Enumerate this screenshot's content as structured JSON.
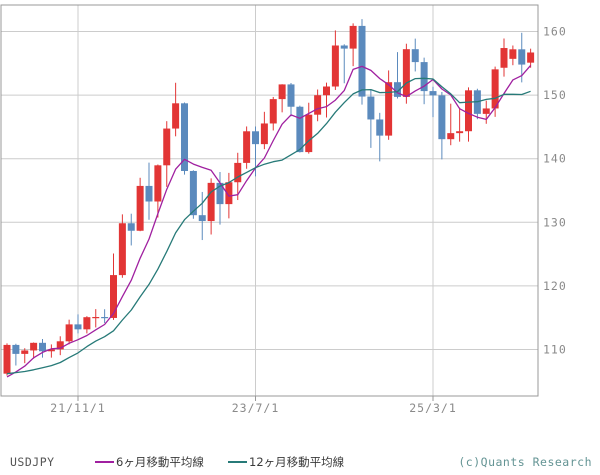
{
  "chart_data": {
    "type": "candlestick",
    "symbol": "USDJPY",
    "watermark": "(c)Quants Research",
    "legend_note": "monthly USDJPY candles with 6-month and 12-month moving average lines",
    "y_axis": {
      "ticks": [
        160,
        150,
        140,
        130,
        120,
        110
      ],
      "visible_range": [
        102.8,
        164.2
      ]
    },
    "x_axis": {
      "ticks": [
        {
          "label": "21/11/1",
          "index": 8
        },
        {
          "label": "23/7/1",
          "index": 28
        },
        {
          "label": "25/3/1",
          "index": 48
        }
      ]
    },
    "candles": [
      {
        "t": "21/3",
        "o": 106.2,
        "h": 110.97,
        "l": 105.9,
        "c": 110.72
      },
      {
        "t": "21/4",
        "o": 110.72,
        "h": 110.9,
        "l": 107.48,
        "c": 109.31
      },
      {
        "t": "21/5",
        "o": 109.31,
        "h": 110.2,
        "l": 107.85,
        "c": 109.85
      },
      {
        "t": "21/6",
        "o": 109.85,
        "h": 111.11,
        "l": 108.56,
        "c": 111.05
      },
      {
        "t": "21/7",
        "o": 111.05,
        "h": 111.66,
        "l": 108.72,
        "c": 109.72
      },
      {
        "t": "21/8",
        "o": 109.72,
        "h": 110.8,
        "l": 108.72,
        "c": 110.02
      },
      {
        "t": "21/9",
        "o": 110.02,
        "h": 112.08,
        "l": 109.11,
        "c": 111.29
      },
      {
        "t": "21/10",
        "o": 111.29,
        "h": 114.69,
        "l": 110.82,
        "c": 113.95
      },
      {
        "t": "21/11",
        "o": 113.95,
        "h": 115.52,
        "l": 112.53,
        "c": 113.17
      },
      {
        "t": "21/12",
        "o": 113.17,
        "h": 115.24,
        "l": 112.53,
        "c": 115.08
      },
      {
        "t": "22/1",
        "o": 115.08,
        "h": 116.35,
        "l": 113.47,
        "c": 115.11
      },
      {
        "t": "22/2",
        "o": 115.11,
        "h": 116.33,
        "l": 114.16,
        "c": 114.96
      },
      {
        "t": "22/3",
        "o": 114.96,
        "h": 125.1,
        "l": 114.65,
        "c": 121.7
      },
      {
        "t": "22/4",
        "o": 121.7,
        "h": 131.25,
        "l": 121.28,
        "c": 129.85
      },
      {
        "t": "22/5",
        "o": 129.85,
        "h": 131.35,
        "l": 126.36,
        "c": 128.67
      },
      {
        "t": "22/6",
        "o": 128.67,
        "h": 137.0,
        "l": 128.6,
        "c": 135.72
      },
      {
        "t": "22/7",
        "o": 135.72,
        "h": 139.38,
        "l": 130.41,
        "c": 133.27
      },
      {
        "t": "22/8",
        "o": 133.27,
        "h": 139.09,
        "l": 130.75,
        "c": 138.96
      },
      {
        "t": "22/9",
        "o": 138.96,
        "h": 145.9,
        "l": 135.57,
        "c": 144.74
      },
      {
        "t": "22/10",
        "o": 144.74,
        "h": 151.94,
        "l": 143.52,
        "c": 148.71
      },
      {
        "t": "22/11",
        "o": 148.71,
        "h": 148.84,
        "l": 137.5,
        "c": 138.07
      },
      {
        "t": "22/12",
        "o": 138.07,
        "h": 138.18,
        "l": 130.56,
        "c": 131.12
      },
      {
        "t": "23/1",
        "o": 131.12,
        "h": 134.77,
        "l": 127.21,
        "c": 130.2
      },
      {
        "t": "23/2",
        "o": 130.2,
        "h": 136.91,
        "l": 128.08,
        "c": 136.2
      },
      {
        "t": "23/3",
        "o": 136.2,
        "h": 137.91,
        "l": 129.63,
        "c": 132.86
      },
      {
        "t": "23/4",
        "o": 132.86,
        "h": 137.77,
        "l": 130.62,
        "c": 136.3
      },
      {
        "t": "23/5",
        "o": 136.3,
        "h": 140.93,
        "l": 133.5,
        "c": 139.34
      },
      {
        "t": "23/6",
        "o": 139.34,
        "h": 145.07,
        "l": 138.42,
        "c": 144.31
      },
      {
        "t": "23/7",
        "o": 144.31,
        "h": 145.07,
        "l": 137.23,
        "c": 142.29
      },
      {
        "t": "23/8",
        "o": 142.29,
        "h": 147.37,
        "l": 141.5,
        "c": 145.54
      },
      {
        "t": "23/9",
        "o": 145.54,
        "h": 149.71,
        "l": 144.44,
        "c": 149.37
      },
      {
        "t": "23/10",
        "o": 149.37,
        "h": 151.71,
        "l": 147.29,
        "c": 151.68
      },
      {
        "t": "23/11",
        "o": 151.68,
        "h": 151.9,
        "l": 146.67,
        "c": 148.17
      },
      {
        "t": "23/12",
        "o": 148.17,
        "h": 148.34,
        "l": 140.97,
        "c": 141.04
      },
      {
        "t": "24/1",
        "o": 141.04,
        "h": 148.8,
        "l": 140.8,
        "c": 146.92
      },
      {
        "t": "24/2",
        "o": 146.92,
        "h": 150.88,
        "l": 145.89,
        "c": 149.98
      },
      {
        "t": "24/3",
        "o": 149.98,
        "h": 151.97,
        "l": 146.48,
        "c": 151.35
      },
      {
        "t": "24/4",
        "o": 151.35,
        "h": 160.17,
        "l": 150.81,
        "c": 157.8
      },
      {
        "t": "24/5",
        "o": 157.8,
        "h": 157.99,
        "l": 151.86,
        "c": 157.31
      },
      {
        "t": "24/6",
        "o": 157.31,
        "h": 161.28,
        "l": 154.55,
        "c": 160.88
      },
      {
        "t": "24/7",
        "o": 160.88,
        "h": 161.95,
        "l": 148.51,
        "c": 149.77
      },
      {
        "t": "24/8",
        "o": 149.77,
        "h": 150.89,
        "l": 141.7,
        "c": 146.17
      },
      {
        "t": "24/9",
        "o": 146.17,
        "h": 147.21,
        "l": 139.58,
        "c": 143.63
      },
      {
        "t": "24/10",
        "o": 143.63,
        "h": 153.88,
        "l": 142.97,
        "c": 152.03
      },
      {
        "t": "24/11",
        "o": 152.03,
        "h": 156.75,
        "l": 149.47,
        "c": 149.72
      },
      {
        "t": "24/12",
        "o": 149.72,
        "h": 158.08,
        "l": 148.65,
        "c": 157.22
      },
      {
        "t": "25/1",
        "o": 157.22,
        "h": 158.88,
        "l": 153.72,
        "c": 155.19
      },
      {
        "t": "25/2",
        "o": 155.19,
        "h": 155.89,
        "l": 148.57,
        "c": 150.63
      },
      {
        "t": "25/3",
        "o": 150.63,
        "h": 151.31,
        "l": 146.54,
        "c": 149.96
      },
      {
        "t": "25/4",
        "o": 149.96,
        "h": 150.49,
        "l": 139.89,
        "c": 143.07
      },
      {
        "t": "25/5",
        "o": 143.07,
        "h": 148.65,
        "l": 142.12,
        "c": 144.02
      },
      {
        "t": "25/6",
        "o": 144.02,
        "h": 148.03,
        "l": 142.68,
        "c": 144.32
      },
      {
        "t": "25/7",
        "o": 144.32,
        "h": 151.21,
        "l": 142.69,
        "c": 150.75
      },
      {
        "t": "25/8",
        "o": 150.75,
        "h": 151.0,
        "l": 146.21,
        "c": 147.05
      },
      {
        "t": "25/9",
        "o": 147.05,
        "h": 149.13,
        "l": 145.49,
        "c": 147.9
      },
      {
        "t": "25/10",
        "o": 147.9,
        "h": 154.48,
        "l": 146.58,
        "c": 154.05
      },
      {
        "t": "25/11",
        "o": 154.3,
        "h": 158.9,
        "l": 152.9,
        "c": 157.4
      },
      {
        "t": "25/12",
        "o": 155.7,
        "h": 157.8,
        "l": 154.7,
        "c": 157.2
      },
      {
        "t": "26/1",
        "o": 157.2,
        "h": 159.8,
        "l": 152.0,
        "c": 154.8
      },
      {
        "t": "26/2",
        "o": 155.1,
        "h": 157.3,
        "l": 154.3,
        "c": 156.7
      }
    ],
    "prior_closes_for_ma": [
      107.18,
      107.83,
      107.93,
      105.83,
      105.91,
      105.48,
      104.66,
      104.31,
      103.25,
      104.68,
      106.57
    ],
    "moving_averages": [
      {
        "label": "6ヶ月移動平均線",
        "window": 6,
        "color": "#a020a0"
      },
      {
        "label": "12ヶ月移動平均線",
        "window": 12,
        "color": "#277a78"
      }
    ],
    "colors": {
      "up": "#e23535",
      "down": "#5b8abd",
      "grid": "#cccccc",
      "border": "#999999",
      "axis_text": "#8a8a8a",
      "legend_text": "#3a3a3a",
      "symbol_text": "#555555",
      "watermark": "#649494",
      "background": "#ffffff"
    }
  }
}
